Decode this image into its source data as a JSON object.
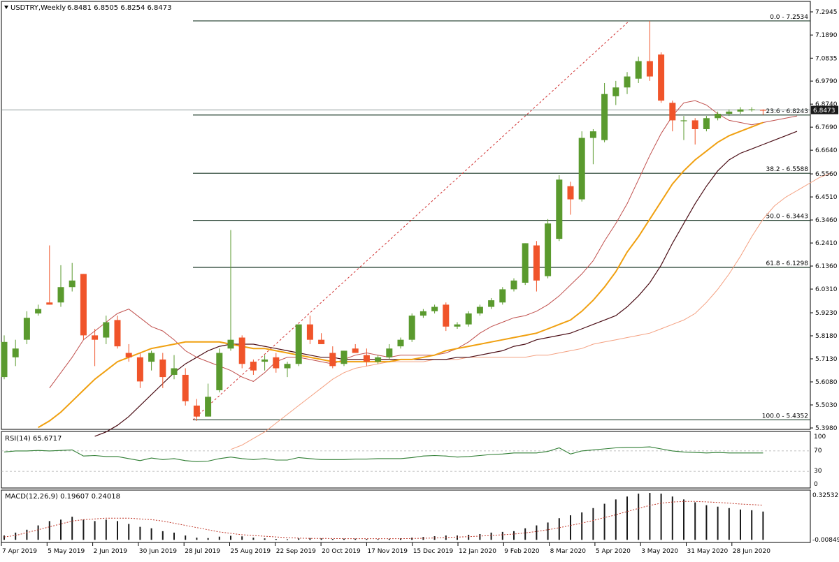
{
  "header": {
    "symbol_title": "USDTRY,Weekly",
    "ohlc": "6.8481 6.8505 6.8254 6.8473"
  },
  "rsi_panel": {
    "label": "RSI(14) 65.6717",
    "levels": [
      "100",
      "70",
      "30",
      "0"
    ]
  },
  "macd_panel": {
    "label": "MACD(12,26,9) 0.19607 0.24018",
    "top_value": "0.32532",
    "bottom_value": "-0.00849"
  },
  "price_axis": {
    "ticks": [
      "7.2945",
      "7.1890",
      "7.0835",
      "6.9790",
      "6.8740",
      "6.7690",
      "6.6640",
      "6.5560",
      "6.4510",
      "6.3460",
      "6.2410",
      "6.1360",
      "6.0310",
      "5.9230",
      "5.8180",
      "5.7130",
      "5.6080",
      "5.5030",
      "5.3980"
    ],
    "current_price": "6.8473"
  },
  "time_axis": {
    "labels": [
      "7 Apr 2019",
      "5 May 2019",
      "2 Jun 2019",
      "30 Jun 2019",
      "28 Jul 2019",
      "25 Aug 2019",
      "22 Sep 2019",
      "20 Oct 2019",
      "17 Nov 2019",
      "15 Dec 2019",
      "12 Jan 2020",
      "9 Feb 2020",
      "8 Mar 2020",
      "5 Apr 2020",
      "3 May 2020",
      "31 May 2020",
      "28 Jun 2020"
    ]
  },
  "fibonacci": [
    {
      "label": "0.0 - 7.2534",
      "price": 7.2534
    },
    {
      "label": "23.6 - 6.8243",
      "price": 6.8243
    },
    {
      "label": "38.2 - 6.5588",
      "price": 6.5588
    },
    {
      "label": "50.0 - 6.3443",
      "price": 6.3443
    },
    {
      "label": "61.8 - 6.1298",
      "price": 6.1298
    },
    {
      "label": "100.0 - 5.4352",
      "price": 5.4352
    }
  ],
  "colors": {
    "bull": "#5a9a2e",
    "bear": "#f0542a",
    "fib": "#1f3b2a",
    "ma_orange": "#f0a010",
    "ma_dark": "#4a0d15",
    "ma_red": "#c0504d",
    "ma_salmon": "#f4a080",
    "rsi_line": "#2e7d32",
    "macd_bar": "#1a1a1a",
    "macd_signal": "#c0392b"
  },
  "chart_data": {
    "type": "candlestick",
    "timeframe": "Weekly",
    "symbol": "USDTRY",
    "ylim": [
      5.398,
      7.2945
    ],
    "candles": [
      {
        "o": 5.63,
        "h": 5.82,
        "l": 5.62,
        "c": 5.79
      },
      {
        "o": 5.72,
        "h": 5.8,
        "l": 5.68,
        "c": 5.76
      },
      {
        "o": 5.8,
        "h": 5.93,
        "l": 5.78,
        "c": 5.9
      },
      {
        "o": 5.92,
        "h": 5.96,
        "l": 5.91,
        "c": 5.94
      },
      {
        "o": 5.97,
        "h": 6.23,
        "l": 5.96,
        "c": 5.96
      },
      {
        "o": 5.97,
        "h": 6.14,
        "l": 5.95,
        "c": 6.04
      },
      {
        "o": 6.04,
        "h": 6.15,
        "l": 6.02,
        "c": 6.07
      },
      {
        "o": 6.1,
        "h": 6.1,
        "l": 5.8,
        "c": 5.82
      },
      {
        "o": 5.82,
        "h": 5.85,
        "l": 5.68,
        "c": 5.8
      },
      {
        "o": 5.81,
        "h": 5.91,
        "l": 5.78,
        "c": 5.88
      },
      {
        "o": 5.89,
        "h": 5.91,
        "l": 5.76,
        "c": 5.77
      },
      {
        "o": 5.74,
        "h": 5.78,
        "l": 5.7,
        "c": 5.72
      },
      {
        "o": 5.72,
        "h": 5.74,
        "l": 5.58,
        "c": 5.61
      },
      {
        "o": 5.7,
        "h": 5.75,
        "l": 5.66,
        "c": 5.74
      },
      {
        "o": 5.71,
        "h": 5.74,
        "l": 5.58,
        "c": 5.63
      },
      {
        "o": 5.64,
        "h": 5.73,
        "l": 5.62,
        "c": 5.67
      },
      {
        "o": 5.64,
        "h": 5.67,
        "l": 5.5,
        "c": 5.52
      },
      {
        "o": 5.5,
        "h": 5.53,
        "l": 5.43,
        "c": 5.45
      },
      {
        "o": 5.45,
        "h": 5.6,
        "l": 5.45,
        "c": 5.54
      },
      {
        "o": 5.57,
        "h": 5.76,
        "l": 5.56,
        "c": 5.74
      },
      {
        "o": 5.76,
        "h": 6.3,
        "l": 5.75,
        "c": 5.8
      },
      {
        "o": 5.81,
        "h": 5.82,
        "l": 5.67,
        "c": 5.69
      },
      {
        "o": 5.7,
        "h": 5.71,
        "l": 5.64,
        "c": 5.66
      },
      {
        "o": 5.7,
        "h": 5.73,
        "l": 5.66,
        "c": 5.71
      },
      {
        "o": 5.72,
        "h": 5.74,
        "l": 5.65,
        "c": 5.67
      },
      {
        "o": 5.67,
        "h": 5.7,
        "l": 5.63,
        "c": 5.69
      },
      {
        "o": 5.69,
        "h": 5.87,
        "l": 5.68,
        "c": 5.87
      },
      {
        "o": 5.87,
        "h": 5.91,
        "l": 5.78,
        "c": 5.8
      },
      {
        "o": 5.8,
        "h": 5.83,
        "l": 5.78,
        "c": 5.78
      },
      {
        "o": 5.74,
        "h": 5.77,
        "l": 5.67,
        "c": 5.68
      },
      {
        "o": 5.69,
        "h": 5.75,
        "l": 5.68,
        "c": 5.75
      },
      {
        "o": 5.76,
        "h": 5.78,
        "l": 5.74,
        "c": 5.74
      },
      {
        "o": 5.73,
        "h": 5.76,
        "l": 5.68,
        "c": 5.7
      },
      {
        "o": 5.7,
        "h": 5.73,
        "l": 5.69,
        "c": 5.72
      },
      {
        "o": 5.72,
        "h": 5.78,
        "l": 5.71,
        "c": 5.76
      },
      {
        "o": 5.77,
        "h": 5.81,
        "l": 5.76,
        "c": 5.8
      },
      {
        "o": 5.8,
        "h": 5.92,
        "l": 5.79,
        "c": 5.91
      },
      {
        "o": 5.91,
        "h": 5.94,
        "l": 5.9,
        "c": 5.93
      },
      {
        "o": 5.93,
        "h": 5.96,
        "l": 5.92,
        "c": 5.95
      },
      {
        "o": 5.96,
        "h": 5.97,
        "l": 5.84,
        "c": 5.86
      },
      {
        "o": 5.86,
        "h": 5.88,
        "l": 5.85,
        "c": 5.87
      },
      {
        "o": 5.87,
        "h": 5.93,
        "l": 5.86,
        "c": 5.92
      },
      {
        "o": 5.92,
        "h": 5.96,
        "l": 5.91,
        "c": 5.95
      },
      {
        "o": 5.95,
        "h": 5.99,
        "l": 5.94,
        "c": 5.98
      },
      {
        "o": 5.97,
        "h": 6.04,
        "l": 5.96,
        "c": 6.03
      },
      {
        "o": 6.03,
        "h": 6.08,
        "l": 6.02,
        "c": 6.07
      },
      {
        "o": 6.06,
        "h": 6.24,
        "l": 6.05,
        "c": 6.24
      },
      {
        "o": 6.23,
        "h": 6.25,
        "l": 6.02,
        "c": 6.07
      },
      {
        "o": 6.09,
        "h": 6.35,
        "l": 6.08,
        "c": 6.33
      },
      {
        "o": 6.26,
        "h": 6.55,
        "l": 6.25,
        "c": 6.53
      },
      {
        "o": 6.5,
        "h": 6.52,
        "l": 6.37,
        "c": 6.44
      },
      {
        "o": 6.44,
        "h": 6.75,
        "l": 6.43,
        "c": 6.72
      },
      {
        "o": 6.72,
        "h": 6.76,
        "l": 6.6,
        "c": 6.75
      },
      {
        "o": 6.71,
        "h": 6.97,
        "l": 6.7,
        "c": 6.92
      },
      {
        "o": 6.91,
        "h": 6.98,
        "l": 6.87,
        "c": 6.95
      },
      {
        "o": 6.95,
        "h": 7.02,
        "l": 6.92,
        "c": 7.0
      },
      {
        "o": 6.99,
        "h": 7.09,
        "l": 6.97,
        "c": 7.07
      },
      {
        "o": 7.07,
        "h": 7.2534,
        "l": 6.98,
        "c": 7.0
      },
      {
        "o": 7.1,
        "h": 7.11,
        "l": 6.88,
        "c": 6.89
      },
      {
        "o": 6.88,
        "h": 6.89,
        "l": 6.75,
        "c": 6.8
      },
      {
        "o": 6.8,
        "h": 6.82,
        "l": 6.71,
        "c": 6.8
      },
      {
        "o": 6.8,
        "h": 6.81,
        "l": 6.69,
        "c": 6.76
      },
      {
        "o": 6.76,
        "h": 6.82,
        "l": 6.75,
        "c": 6.81
      },
      {
        "o": 6.81,
        "h": 6.84,
        "l": 6.8,
        "c": 6.83
      },
      {
        "o": 6.83,
        "h": 6.85,
        "l": 6.82,
        "c": 6.84
      },
      {
        "o": 6.84,
        "h": 6.86,
        "l": 6.83,
        "c": 6.85
      },
      {
        "o": 6.85,
        "h": 6.86,
        "l": 6.84,
        "c": 6.85
      },
      {
        "o": 6.8481,
        "h": 6.8505,
        "l": 6.8254,
        "c": 6.8473
      }
    ],
    "rsi": [
      68,
      70,
      70,
      71,
      70,
      71,
      72,
      60,
      61,
      59,
      59,
      55,
      51,
      56,
      53,
      55,
      51,
      49,
      50,
      55,
      58,
      55,
      53,
      55,
      52,
      52,
      57,
      55,
      53,
      53,
      53,
      54,
      54,
      55,
      55,
      55,
      57,
      60,
      61,
      60,
      58,
      59,
      61,
      63,
      64,
      66,
      66,
      66,
      69,
      76,
      64,
      70,
      72,
      74,
      76,
      77,
      77,
      78,
      74,
      70,
      68,
      67,
      66,
      67,
      66,
      66,
      66,
      66
    ],
    "macd": [
      0.03,
      0.05,
      0.07,
      0.1,
      0.13,
      0.14,
      0.16,
      0.14,
      0.13,
      0.14,
      0.13,
      0.11,
      0.09,
      0.08,
      0.06,
      0.05,
      0.03,
      0.015,
      0.012,
      0.022,
      0.028,
      0.024,
      0.015,
      0.01,
      0.006,
      0.004,
      0.01,
      0.012,
      0.01,
      0.006,
      0.008,
      0.008,
      0.006,
      0.005,
      0.007,
      0.01,
      0.015,
      0.02,
      0.025,
      0.03,
      0.03,
      0.035,
      0.04,
      0.05,
      0.055,
      0.06,
      0.08,
      0.1,
      0.12,
      0.15,
      0.17,
      0.19,
      0.22,
      0.25,
      0.28,
      0.3,
      0.32,
      0.325,
      0.32,
      0.3,
      0.28,
      0.26,
      0.24,
      0.23,
      0.22,
      0.21,
      0.205,
      0.196
    ],
    "macd_signal": [
      0.02,
      0.03,
      0.05,
      0.07,
      0.09,
      0.11,
      0.13,
      0.14,
      0.145,
      0.15,
      0.15,
      0.15,
      0.145,
      0.14,
      0.13,
      0.115,
      0.1,
      0.085,
      0.07,
      0.055,
      0.045,
      0.035,
      0.03,
      0.025,
      0.02,
      0.015,
      0.012,
      0.01,
      0.01,
      0.009,
      0.008,
      0.008,
      0.008,
      0.008,
      0.008,
      0.008,
      0.009,
      0.011,
      0.013,
      0.016,
      0.019,
      0.022,
      0.026,
      0.03,
      0.035,
      0.04,
      0.048,
      0.058,
      0.07,
      0.084,
      0.1,
      0.116,
      0.134,
      0.154,
      0.174,
      0.196,
      0.218,
      0.238,
      0.254,
      0.262,
      0.266,
      0.266,
      0.263,
      0.259,
      0.254,
      0.248,
      0.244,
      0.24
    ],
    "ma_orange": [
      5.4,
      5.43,
      5.47,
      5.52,
      5.57,
      5.62,
      5.66,
      5.7,
      5.72,
      5.74,
      5.76,
      5.77,
      5.78,
      5.79,
      5.79,
      5.79,
      5.79,
      5.78,
      5.77,
      5.76,
      5.76,
      5.75,
      5.74,
      5.73,
      5.72,
      5.71,
      5.7,
      5.7,
      5.7,
      5.7,
      5.7,
      5.7,
      5.71,
      5.71,
      5.72,
      5.73,
      5.75,
      5.76,
      5.77,
      5.78,
      5.79,
      5.8,
      5.81,
      5.82,
      5.83,
      5.85,
      5.87,
      5.89,
      5.93,
      5.98,
      6.04,
      6.11,
      6.2,
      6.27,
      6.35,
      6.43,
      6.51,
      6.57,
      6.62,
      6.66,
      6.7,
      6.73,
      6.75,
      6.77,
      6.79
    ],
    "ma_dark": [
      5.36,
      5.38,
      5.41,
      5.45,
      5.5,
      5.55,
      5.6,
      5.65,
      5.69,
      5.72,
      5.75,
      5.77,
      5.78,
      5.78,
      5.78,
      5.77,
      5.76,
      5.75,
      5.74,
      5.73,
      5.72,
      5.72,
      5.71,
      5.71,
      5.71,
      5.71,
      5.71,
      5.71,
      5.71,
      5.71,
      5.71,
      5.71,
      5.72,
      5.72,
      5.73,
      5.74,
      5.75,
      5.77,
      5.78,
      5.8,
      5.81,
      5.82,
      5.83,
      5.85,
      5.87,
      5.89,
      5.91,
      5.95,
      6.0,
      6.06,
      6.14,
      6.24,
      6.33,
      6.42,
      6.5,
      6.57,
      6.62,
      6.65,
      6.67,
      6.69,
      6.71,
      6.73,
      6.75
    ],
    "ma_red": [
      5.58,
      5.65,
      5.72,
      5.8,
      5.84,
      5.88,
      5.92,
      5.94,
      5.9,
      5.86,
      5.84,
      5.8,
      5.75,
      5.72,
      5.7,
      5.68,
      5.66,
      5.63,
      5.61,
      5.65,
      5.7,
      5.72,
      5.72,
      5.71,
      5.7,
      5.69,
      5.71,
      5.73,
      5.74,
      5.73,
      5.72,
      5.73,
      5.73,
      5.73,
      5.73,
      5.74,
      5.76,
      5.79,
      5.83,
      5.86,
      5.88,
      5.9,
      5.91,
      5.93,
      5.96,
      6.0,
      6.05,
      6.1,
      6.16,
      6.25,
      6.33,
      6.42,
      6.53,
      6.64,
      6.74,
      6.82,
      6.88,
      6.89,
      6.87,
      6.83,
      6.8,
      6.79,
      6.78,
      6.79,
      6.8,
      6.81,
      6.82
    ],
    "ma_salmon": [
      5.3,
      5.32,
      5.35,
      5.38,
      5.42,
      5.46,
      5.5,
      5.54,
      5.58,
      5.62,
      5.65,
      5.67,
      5.68,
      5.69,
      5.7,
      5.7,
      5.7,
      5.7,
      5.71,
      5.71,
      5.71,
      5.72,
      5.72,
      5.72,
      5.72,
      5.72,
      5.72,
      5.73,
      5.73,
      5.74,
      5.75,
      5.76,
      5.78,
      5.79,
      5.8,
      5.81,
      5.82,
      5.83,
      5.85,
      5.87,
      5.89,
      5.92,
      5.97,
      6.03,
      6.1,
      6.18,
      6.27,
      6.35,
      6.41,
      6.45,
      6.48,
      6.51,
      6.54,
      6.56
    ]
  }
}
